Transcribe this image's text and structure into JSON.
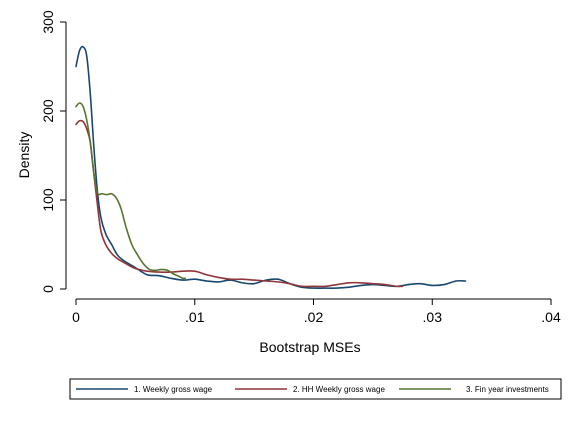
{
  "chart_data": {
    "type": "line",
    "title": "",
    "xlabel": "Bootstrap MSEs",
    "ylabel": "Density",
    "xlim": [
      0,
      0.04
    ],
    "ylim": [
      0,
      300
    ],
    "grid": false,
    "legend_position": "bottom",
    "x_ticks": [
      {
        "value": 0,
        "label": "0"
      },
      {
        "value": 0.01,
        "label": ".01"
      },
      {
        "value": 0.02,
        "label": ".02"
      },
      {
        "value": 0.03,
        "label": ".03"
      },
      {
        "value": 0.04,
        "label": ".04"
      }
    ],
    "y_ticks": [
      {
        "value": 0,
        "label": "0"
      },
      {
        "value": 100,
        "label": "100"
      },
      {
        "value": 200,
        "label": "200"
      },
      {
        "value": 300,
        "label": "300"
      }
    ],
    "series": [
      {
        "name": "1. Weekly gross wage",
        "color": "#1a476f",
        "points": [
          [
            0,
            250
          ],
          [
            0.0003,
            268
          ],
          [
            0.0006,
            272
          ],
          [
            0.0009,
            262
          ],
          [
            0.0012,
            220
          ],
          [
            0.0015,
            160
          ],
          [
            0.0018,
            110
          ],
          [
            0.0021,
            80
          ],
          [
            0.0025,
            62
          ],
          [
            0.003,
            50
          ],
          [
            0.0035,
            38
          ],
          [
            0.004,
            32
          ],
          [
            0.005,
            24
          ],
          [
            0.006,
            16
          ],
          [
            0.007,
            15
          ],
          [
            0.008,
            12
          ],
          [
            0.009,
            10
          ],
          [
            0.01,
            11
          ],
          [
            0.011,
            9
          ],
          [
            0.012,
            8
          ],
          [
            0.013,
            10
          ],
          [
            0.014,
            7
          ],
          [
            0.015,
            6
          ],
          [
            0.016,
            10
          ],
          [
            0.017,
            11
          ],
          [
            0.018,
            6
          ],
          [
            0.019,
            2
          ],
          [
            0.02,
            1
          ],
          [
            0.021,
            1
          ],
          [
            0.022,
            1
          ],
          [
            0.023,
            2
          ],
          [
            0.024,
            4
          ],
          [
            0.025,
            5
          ],
          [
            0.026,
            4
          ],
          [
            0.027,
            3
          ],
          [
            0.028,
            5
          ],
          [
            0.029,
            6
          ],
          [
            0.03,
            4
          ],
          [
            0.031,
            5
          ],
          [
            0.032,
            9
          ],
          [
            0.0328,
            9
          ]
        ]
      },
      {
        "name": "2. HH Weekly gross wage",
        "color": "#90353b",
        "points": [
          [
            0,
            185
          ],
          [
            0.0003,
            189
          ],
          [
            0.0006,
            188
          ],
          [
            0.0009,
            180
          ],
          [
            0.0012,
            165
          ],
          [
            0.0015,
            130
          ],
          [
            0.0018,
            95
          ],
          [
            0.0021,
            65
          ],
          [
            0.0025,
            50
          ],
          [
            0.003,
            40
          ],
          [
            0.0035,
            34
          ],
          [
            0.004,
            30
          ],
          [
            0.005,
            23
          ],
          [
            0.006,
            20
          ],
          [
            0.007,
            19
          ],
          [
            0.008,
            19
          ],
          [
            0.009,
            20
          ],
          [
            0.01,
            20
          ],
          [
            0.011,
            16
          ],
          [
            0.012,
            13
          ],
          [
            0.013,
            11
          ],
          [
            0.014,
            11
          ],
          [
            0.015,
            10
          ],
          [
            0.016,
            9
          ],
          [
            0.017,
            8
          ],
          [
            0.018,
            6
          ],
          [
            0.019,
            3
          ],
          [
            0.02,
            3
          ],
          [
            0.021,
            3
          ],
          [
            0.022,
            5
          ],
          [
            0.023,
            7
          ],
          [
            0.024,
            7
          ],
          [
            0.025,
            6
          ],
          [
            0.026,
            5
          ],
          [
            0.027,
            3
          ],
          [
            0.0275,
            3
          ]
        ]
      },
      {
        "name": "3. Fin year investments",
        "color": "#55752f",
        "points": [
          [
            0,
            205
          ],
          [
            0.0003,
            209
          ],
          [
            0.0006,
            205
          ],
          [
            0.0009,
            190
          ],
          [
            0.0012,
            165
          ],
          [
            0.0015,
            130
          ],
          [
            0.0018,
            108
          ],
          [
            0.0022,
            107
          ],
          [
            0.0026,
            106
          ],
          [
            0.003,
            107
          ],
          [
            0.0034,
            102
          ],
          [
            0.0038,
            90
          ],
          [
            0.0042,
            70
          ],
          [
            0.0047,
            50
          ],
          [
            0.0052,
            38
          ],
          [
            0.0057,
            28
          ],
          [
            0.0062,
            22
          ],
          [
            0.0067,
            21
          ],
          [
            0.0072,
            22
          ],
          [
            0.0077,
            21
          ],
          [
            0.0082,
            17
          ],
          [
            0.0087,
            14
          ],
          [
            0.009,
            12
          ],
          [
            0.0092,
            12
          ]
        ]
      }
    ]
  }
}
